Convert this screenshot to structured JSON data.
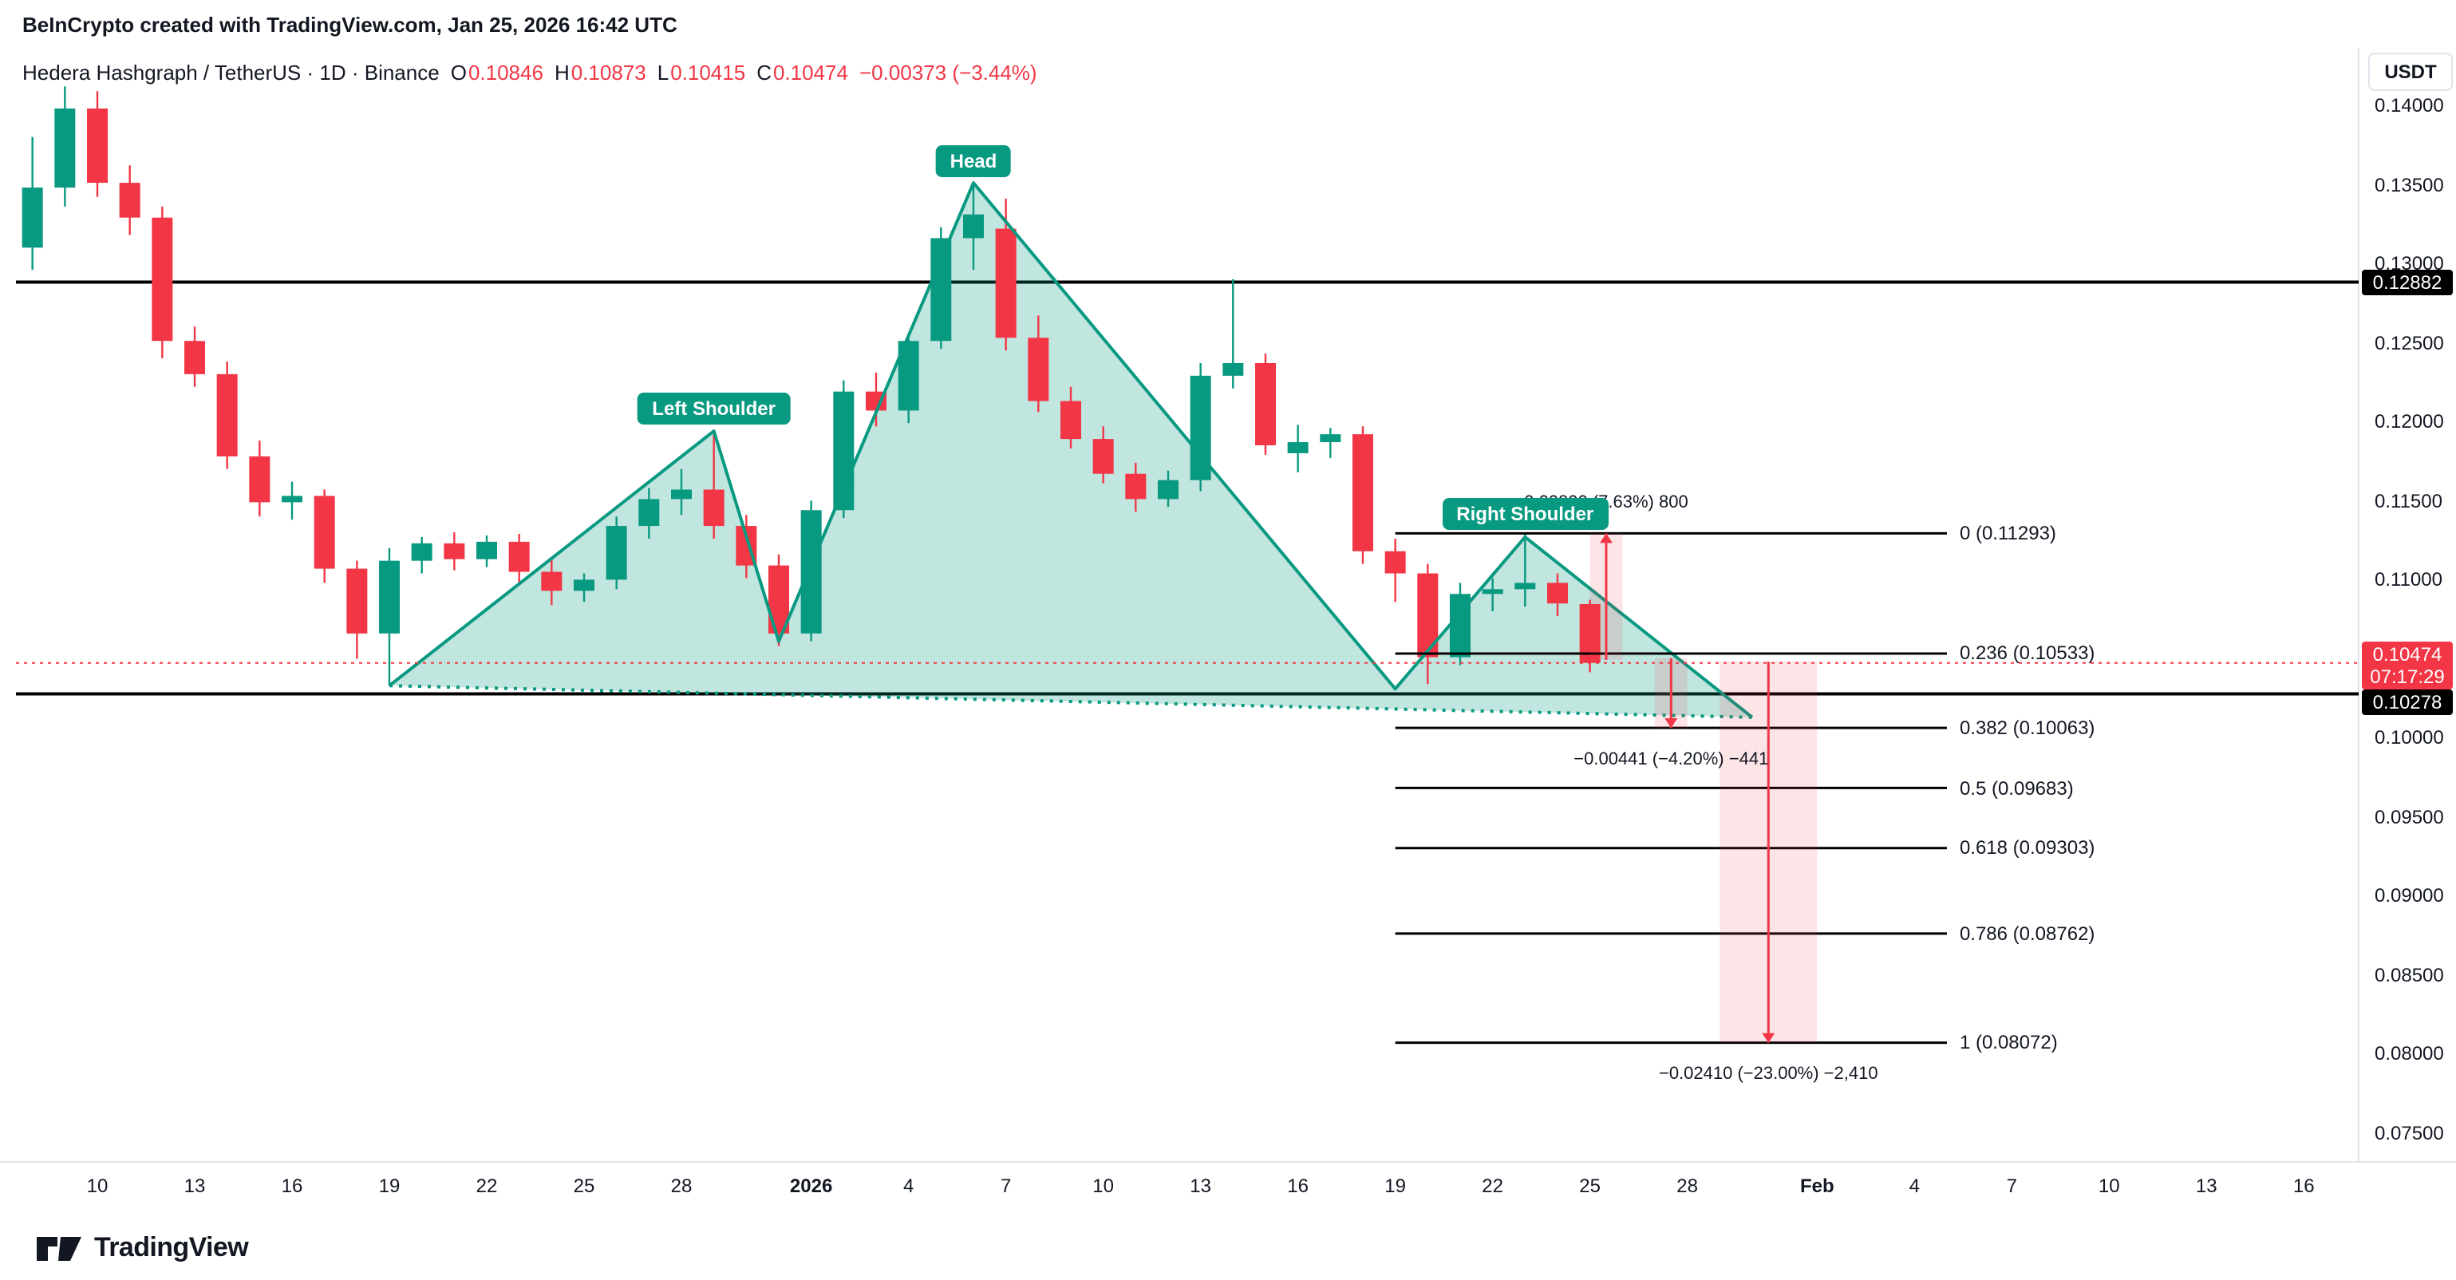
{
  "attribution": "BeInCrypto created with TradingView.com, Jan 25, 2026 16:42 UTC",
  "symbol": {
    "title": "Hedera Hashgraph / TetherUS · 1D · Binance",
    "ohlc": [
      {
        "k": "O",
        "v": "0.10846"
      },
      {
        "k": "H",
        "v": "0.10873"
      },
      {
        "k": "L",
        "v": "0.10415"
      },
      {
        "k": "C",
        "v": "0.10474"
      }
    ],
    "change": "−0.00373 (−3.44%)"
  },
  "currency_button": "USDT",
  "brand": {
    "name": "TradingView"
  },
  "colors": {
    "up": "#089981",
    "down": "#f23645",
    "pattern_fill": "rgba(8,153,129,0.25)",
    "pattern_stroke": "#089981",
    "measure_fill": "rgba(242,54,69,0.13)",
    "measure_stroke": "#f23645",
    "line": "#000000",
    "text": "#131722"
  },
  "price_axis": {
    "ticks": [
      "0.14000",
      "0.13500",
      "0.13000",
      "0.12500",
      "0.12000",
      "0.11500",
      "0.11000",
      "0.10000",
      "0.09500",
      "0.09000",
      "0.08500",
      "0.08000",
      "0.07500"
    ],
    "tags": {
      "resistance": {
        "value": "0.12882",
        "price": 0.12882
      },
      "last": {
        "value": "0.10474",
        "countdown": "07:17:29",
        "price": 0.10474
      },
      "neckline": {
        "value": "0.10278",
        "price": 0.10278
      }
    }
  },
  "time_axis": {
    "ticks": [
      {
        "label": "10",
        "date": "2025-12-10"
      },
      {
        "label": "13",
        "date": "2025-12-13"
      },
      {
        "label": "16",
        "date": "2025-12-16"
      },
      {
        "label": "19",
        "date": "2025-12-19"
      },
      {
        "label": "22",
        "date": "2025-12-22"
      },
      {
        "label": "25",
        "date": "2025-12-25"
      },
      {
        "label": "28",
        "date": "2025-12-28"
      },
      {
        "label": "2026",
        "date": "2026-01-01",
        "bold": true
      },
      {
        "label": "4",
        "date": "2026-01-04"
      },
      {
        "label": "7",
        "date": "2026-01-07"
      },
      {
        "label": "10",
        "date": "2026-01-10"
      },
      {
        "label": "13",
        "date": "2026-01-13"
      },
      {
        "label": "16",
        "date": "2026-01-16"
      },
      {
        "label": "19",
        "date": "2026-01-19"
      },
      {
        "label": "22",
        "date": "2026-01-22"
      },
      {
        "label": "25",
        "date": "2026-01-25"
      },
      {
        "label": "28",
        "date": "2026-01-28"
      },
      {
        "label": "Feb",
        "date": "2026-02-01",
        "bold": true
      },
      {
        "label": "4",
        "date": "2026-02-04"
      },
      {
        "label": "7",
        "date": "2026-02-07"
      },
      {
        "label": "10",
        "date": "2026-02-10"
      },
      {
        "label": "13",
        "date": "2026-02-13"
      },
      {
        "label": "16",
        "date": "2026-02-16"
      }
    ]
  },
  "chart_data": {
    "type": "candlestick",
    "title": "Hedera Hashgraph / TetherUS",
    "interval": "1D",
    "exchange": "Binance",
    "quote": "USDT",
    "ylim": [
      0.075,
      0.1415
    ],
    "last_price": 0.10474,
    "candles": [
      {
        "d": "2025-12-08",
        "o": 0.131,
        "h": 0.138,
        "l": 0.1296,
        "c": 0.1348
      },
      {
        "d": "2025-12-09",
        "o": 0.1348,
        "h": 0.1412,
        "l": 0.1336,
        "c": 0.1398
      },
      {
        "d": "2025-12-10",
        "o": 0.1398,
        "h": 0.1409,
        "l": 0.1342,
        "c": 0.1351
      },
      {
        "d": "2025-12-11",
        "o": 0.1351,
        "h": 0.1362,
        "l": 0.1318,
        "c": 0.1329
      },
      {
        "d": "2025-12-12",
        "o": 0.1329,
        "h": 0.1336,
        "l": 0.124,
        "c": 0.1251
      },
      {
        "d": "2025-12-13",
        "o": 0.1251,
        "h": 0.126,
        "l": 0.1222,
        "c": 0.123
      },
      {
        "d": "2025-12-14",
        "o": 0.123,
        "h": 0.1238,
        "l": 0.117,
        "c": 0.1178
      },
      {
        "d": "2025-12-15",
        "o": 0.1178,
        "h": 0.1188,
        "l": 0.114,
        "c": 0.1149
      },
      {
        "d": "2025-12-16",
        "o": 0.1149,
        "h": 0.1162,
        "l": 0.1138,
        "c": 0.1153
      },
      {
        "d": "2025-12-17",
        "o": 0.1153,
        "h": 0.1157,
        "l": 0.1098,
        "c": 0.1107
      },
      {
        "d": "2025-12-18",
        "o": 0.1107,
        "h": 0.1112,
        "l": 0.105,
        "c": 0.1066
      },
      {
        "d": "2025-12-19",
        "o": 0.1066,
        "h": 0.112,
        "l": 0.1033,
        "c": 0.1112
      },
      {
        "d": "2025-12-20",
        "o": 0.1112,
        "h": 0.1127,
        "l": 0.1104,
        "c": 0.1123
      },
      {
        "d": "2025-12-21",
        "o": 0.1123,
        "h": 0.113,
        "l": 0.1106,
        "c": 0.1113
      },
      {
        "d": "2025-12-22",
        "o": 0.1113,
        "h": 0.1128,
        "l": 0.1108,
        "c": 0.1124
      },
      {
        "d": "2025-12-23",
        "o": 0.1124,
        "h": 0.1129,
        "l": 0.1098,
        "c": 0.1105
      },
      {
        "d": "2025-12-24",
        "o": 0.1105,
        "h": 0.1114,
        "l": 0.1084,
        "c": 0.1093
      },
      {
        "d": "2025-12-25",
        "o": 0.1093,
        "h": 0.1104,
        "l": 0.1086,
        "c": 0.11
      },
      {
        "d": "2025-12-26",
        "o": 0.11,
        "h": 0.114,
        "l": 0.1094,
        "c": 0.1134
      },
      {
        "d": "2025-12-27",
        "o": 0.1134,
        "h": 0.1158,
        "l": 0.1126,
        "c": 0.1151
      },
      {
        "d": "2025-12-28",
        "o": 0.1151,
        "h": 0.117,
        "l": 0.1141,
        "c": 0.1157
      },
      {
        "d": "2025-12-29",
        "o": 0.1157,
        "h": 0.1194,
        "l": 0.1126,
        "c": 0.1134
      },
      {
        "d": "2025-12-30",
        "o": 0.1134,
        "h": 0.1141,
        "l": 0.1101,
        "c": 0.1109
      },
      {
        "d": "2025-12-31",
        "o": 0.1109,
        "h": 0.1116,
        "l": 0.1058,
        "c": 0.1066
      },
      {
        "d": "2026-01-01",
        "o": 0.1066,
        "h": 0.115,
        "l": 0.1061,
        "c": 0.1144
      },
      {
        "d": "2026-01-02",
        "o": 0.1144,
        "h": 0.1226,
        "l": 0.1139,
        "c": 0.1219
      },
      {
        "d": "2026-01-03",
        "o": 0.1219,
        "h": 0.1231,
        "l": 0.1197,
        "c": 0.1207
      },
      {
        "d": "2026-01-04",
        "o": 0.1207,
        "h": 0.1256,
        "l": 0.1199,
        "c": 0.1251
      },
      {
        "d": "2026-01-05",
        "o": 0.1251,
        "h": 0.1323,
        "l": 0.1246,
        "c": 0.1316
      },
      {
        "d": "2026-01-06",
        "o": 0.1316,
        "h": 0.1351,
        "l": 0.1296,
        "c": 0.1331
      },
      {
        "d": "2026-01-07",
        "o": 0.1322,
        "h": 0.1341,
        "l": 0.1245,
        "c": 0.1253
      },
      {
        "d": "2026-01-08",
        "o": 0.1253,
        "h": 0.1267,
        "l": 0.1206,
        "c": 0.1213
      },
      {
        "d": "2026-01-09",
        "o": 0.1213,
        "h": 0.1222,
        "l": 0.1183,
        "c": 0.1189
      },
      {
        "d": "2026-01-10",
        "o": 0.1189,
        "h": 0.1197,
        "l": 0.1161,
        "c": 0.1167
      },
      {
        "d": "2026-01-11",
        "o": 0.1167,
        "h": 0.1174,
        "l": 0.1143,
        "c": 0.1151
      },
      {
        "d": "2026-01-12",
        "o": 0.1151,
        "h": 0.1169,
        "l": 0.1146,
        "c": 0.1163
      },
      {
        "d": "2026-01-13",
        "o": 0.1163,
        "h": 0.1237,
        "l": 0.1156,
        "c": 0.1229
      },
      {
        "d": "2026-01-14",
        "o": 0.1229,
        "h": 0.129,
        "l": 0.1221,
        "c": 0.1237
      },
      {
        "d": "2026-01-15",
        "o": 0.1237,
        "h": 0.1243,
        "l": 0.1179,
        "c": 0.1185
      },
      {
        "d": "2026-01-16",
        "o": 0.118,
        "h": 0.1198,
        "l": 0.1168,
        "c": 0.1187
      },
      {
        "d": "2026-01-17",
        "o": 0.1187,
        "h": 0.1196,
        "l": 0.1177,
        "c": 0.1192
      },
      {
        "d": "2026-01-18",
        "o": 0.1192,
        "h": 0.1197,
        "l": 0.111,
        "c": 0.1118
      },
      {
        "d": "2026-01-19",
        "o": 0.1118,
        "h": 0.1126,
        "l": 0.1086,
        "c": 0.1104
      },
      {
        "d": "2026-01-20",
        "o": 0.1104,
        "h": 0.111,
        "l": 0.1034,
        "c": 0.1051
      },
      {
        "d": "2026-01-21",
        "o": 0.1051,
        "h": 0.1098,
        "l": 0.1046,
        "c": 0.1091
      },
      {
        "d": "2026-01-22",
        "o": 0.1091,
        "h": 0.1101,
        "l": 0.108,
        "c": 0.1094
      },
      {
        "d": "2026-01-23",
        "o": 0.1094,
        "h": 0.1129,
        "l": 0.1083,
        "c": 0.1098
      },
      {
        "d": "2026-01-24",
        "o": 0.1098,
        "h": 0.1104,
        "l": 0.1077,
        "c": 0.1085
      },
      {
        "d": "2026-01-25",
        "o": 0.10846,
        "h": 0.10873,
        "l": 0.10415,
        "c": 0.10474
      }
    ],
    "hlines": [
      {
        "price": 0.12882
      },
      {
        "price": 0.10278
      }
    ],
    "pattern": {
      "name": "Head and Shoulders",
      "labels": [
        {
          "text": "Left Shoulder",
          "date": "2025-12-29",
          "price": 0.1194
        },
        {
          "text": "Head",
          "date": "2026-01-06",
          "price": 0.1351
        },
        {
          "text": "Right Shoulder",
          "date": "2026-01-23",
          "price": 0.1127
        }
      ],
      "points": [
        {
          "date": "2025-12-19",
          "price": 0.1033
        },
        {
          "date": "2025-12-29",
          "price": 0.1194
        },
        {
          "date": "2025-12-31",
          "price": 0.1061
        },
        {
          "date": "2026-01-06",
          "price": 0.1351
        },
        {
          "date": "2026-01-19",
          "price": 0.1031
        },
        {
          "date": "2026-01-23",
          "price": 0.1127
        },
        {
          "date": "2026-01-30",
          "price": 0.1013
        }
      ]
    },
    "fib_retracement": {
      "start_date": "2026-01-19",
      "end_date": "2026-02-05",
      "levels": [
        {
          "label": "0 (0.11293)",
          "price": 0.11293
        },
        {
          "label": "0.236 (0.10533)",
          "price": 0.10533
        },
        {
          "label": "0.382 (0.10063)",
          "price": 0.10063
        },
        {
          "label": "0.5 (0.09683)",
          "price": 0.09683
        },
        {
          "label": "0.618 (0.09303)",
          "price": 0.09303
        },
        {
          "label": "0.786 (0.08762)",
          "price": 0.08762
        },
        {
          "label": "1 (0.08072)",
          "price": 0.08072
        }
      ]
    },
    "measurements": [
      {
        "label": "0.00800 (7.63%) 800",
        "date1": "2026-01-25",
        "date2": "2026-01-26",
        "price1": 0.10493,
        "price2": 0.11293,
        "dir": "up"
      },
      {
        "label": "−0.00441 (−4.20%) −441",
        "date1": "2026-01-27",
        "date2": "2026-01-28",
        "price1": 0.10504,
        "price2": 0.10063,
        "dir": "down"
      },
      {
        "label": "−0.02410 (−23.00%) −2,410",
        "date1": "2026-01-29",
        "date2": "2026-02-01",
        "price1": 0.10482,
        "price2": 0.08072,
        "dir": "down"
      }
    ]
  }
}
